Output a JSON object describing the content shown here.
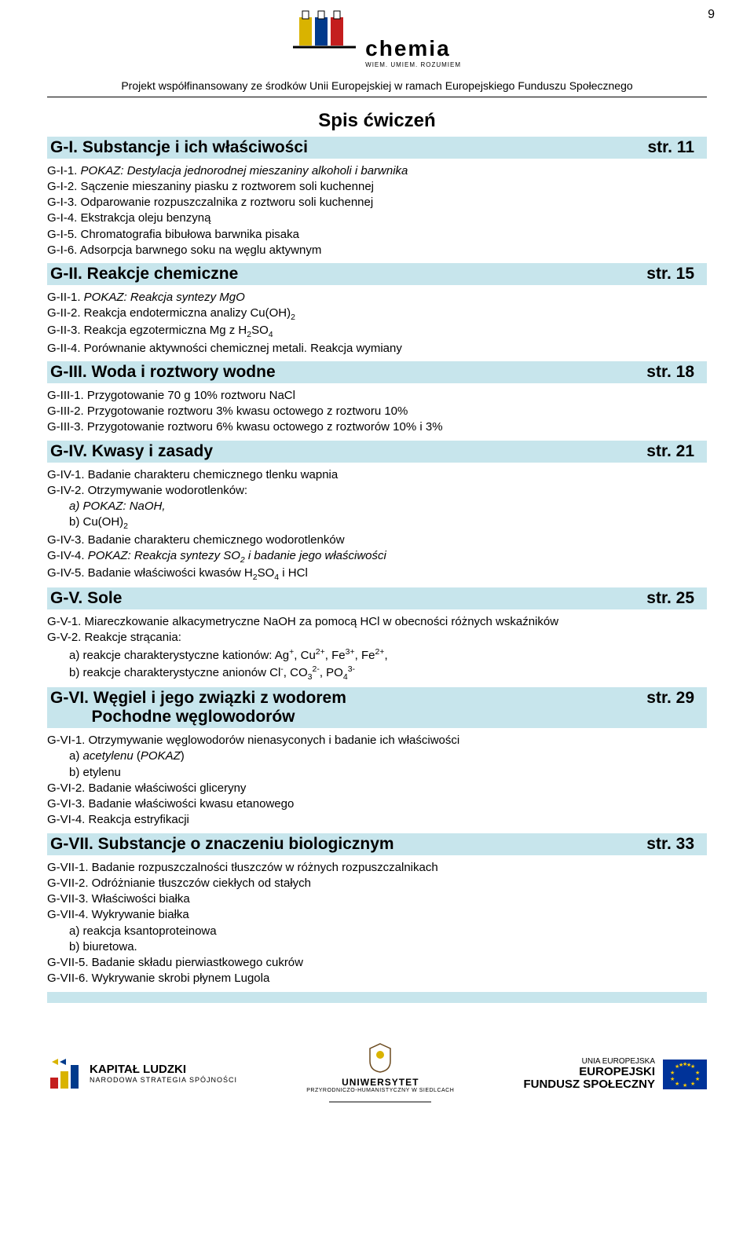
{
  "page_number": "9",
  "header": {
    "brand_main": "chemia",
    "brand_sub": "WIEM. UMIEM. ROZUMIEM",
    "logo_colors": [
      "#d9b300",
      "#003a8c",
      "#c41e1e"
    ],
    "subheader": "Projekt współfinansowany ze środków Unii Europejskiej w ramach Europejskiego Funduszu Społecznego"
  },
  "toc": {
    "title": "Spis ćwiczeń",
    "section_bg": "#c7e5ec",
    "sections": [
      {
        "title": "G-I. Substancje i ich właściwości",
        "page": "str. 11",
        "items": [
          {
            "html": "G-I-1. <span class='pokaz'>POKAZ: Destylacja jednorodnej mieszaniny alkoholi i barwnika</span>"
          },
          {
            "html": "G-I-2. Sączenie mieszaniny piasku z roztworem soli kuchennej"
          },
          {
            "html": "G-I-3. Odparowanie rozpuszczalnika z roztworu soli kuchennej"
          },
          {
            "html": "G-I-4. Ekstrakcja oleju benzyną"
          },
          {
            "html": "G-I-5. Chromatografia bibułowa barwnika pisaka"
          },
          {
            "html": "G-I-6. Adsorpcja barwnego soku na węglu aktywnym"
          }
        ]
      },
      {
        "title": "G-II. Reakcje chemiczne",
        "page": "str. 15",
        "items": [
          {
            "html": "G-II-1. <span class='pokaz'>POKAZ: Reakcja syntezy MgO</span>"
          },
          {
            "html": "G-II-2. Reakcja endotermiczna analizy Cu(OH)<sub>2</sub>"
          },
          {
            "html": "G-II-3. Reakcja egzotermiczna Mg z H<sub>2</sub>SO<sub>4</sub>"
          },
          {
            "html": "G-II-4. Porównanie aktywności chemicznej metali. Reakcja wymiany"
          }
        ]
      },
      {
        "title": "G-III. Woda i roztwory wodne",
        "page": "str. 18",
        "items": [
          {
            "html": "G-III-1. Przygotowanie 70 g 10% roztworu NaCl"
          },
          {
            "html": "G-III-2. Przygotowanie roztworu 3% kwasu octowego z roztworu 10%"
          },
          {
            "html": "G-III-3. Przygotowanie roztworu 6% kwasu octowego z roztworów 10% i 3%"
          }
        ]
      },
      {
        "title": "G-IV. Kwasy i zasady",
        "page": "str. 21",
        "items": [
          {
            "html": "G-IV-1. Badanie charakteru chemicznego tlenku wapnia"
          },
          {
            "html": "G-IV-2. Otrzymywanie wodorotlenków:"
          },
          {
            "html": "a) <span class='pokaz'>POKAZ: NaOH,</span>",
            "sub": true,
            "pokaz": true
          },
          {
            "html": "b) Cu(OH)<sub>2</sub>",
            "sub": true
          },
          {
            "html": "G-IV-3. Badanie charakteru chemicznego wodorotlenków"
          },
          {
            "html": "G-IV-4. <span class='pokaz'>POKAZ: Reakcja syntezy SO<sub>2</sub> i badanie jego właściwości</span>"
          },
          {
            "html": "G-IV-5. Badanie właściwości kwasów H<sub>2</sub>SO<sub>4</sub> i HCl"
          }
        ]
      },
      {
        "title": "G-V. Sole",
        "page": "str. 25",
        "items": [
          {
            "html": "G-V-1. Miareczkowanie alkacymetryczne NaOH za pomocą HCl w obecności różnych wskaźników"
          },
          {
            "html": "G-V-2. Reakcje strącania:"
          },
          {
            "html": "a) reakcje charakterystyczne kationów: Ag<sup>+</sup>, Cu<sup>2+</sup>, Fe<sup>3+</sup>, Fe<sup>2+</sup>,",
            "sub": true
          },
          {
            "html": "b) reakcje charakterystyczne anionów Cl<sup>-</sup>, CO<sub>3</sub><sup>2-</sup>, PO<sub>4</sub><sup>3-</sup>",
            "sub": true
          }
        ]
      },
      {
        "title_html": "G-VI. Węgiel i jego związki z wodorem<br>&nbsp;&nbsp;&nbsp;&nbsp;&nbsp;&nbsp;&nbsp;&nbsp;&nbsp;Pochodne węglowodorów",
        "page": "str. 29",
        "items": [
          {
            "html": "G-VI-1. Otrzymywanie węglowodorów nienasyconych i badanie ich właściwości"
          },
          {
            "html": "a) <span class='pokaz'>acetylenu</span> (<span class='pokaz'>POKAZ</span>)",
            "sub": true
          },
          {
            "html": "b) etylenu",
            "sub": true
          },
          {
            "html": "G-VI-2. Badanie właściwości gliceryny"
          },
          {
            "html": "G-VI-3. Badanie właściwości kwasu etanowego"
          },
          {
            "html": "G-VI-4. Reakcja estryfikacji"
          }
        ]
      },
      {
        "title": "G-VII. Substancje o znaczeniu biologicznym",
        "page": "str. 33",
        "items": [
          {
            "html": "G-VII-1. Badanie rozpuszczalności tłuszczów w różnych rozpuszczalnikach"
          },
          {
            "html": "G-VII-2. Odróżnianie tłuszczów ciekłych od stałych"
          },
          {
            "html": "G-VII-3. Właściwości białka"
          },
          {
            "html": "G-VII-4. Wykrywanie białka"
          },
          {
            "html": "a) reakcja ksantoproteinowa",
            "sub": true
          },
          {
            "html": "b) biuretowa.",
            "sub": true
          },
          {
            "html": "G-VII-5. Badanie składu pierwiastkowego cukrów"
          },
          {
            "html": "G-VII-6. Wykrywanie skrobi płynem Lugola"
          }
        ],
        "trailing_spacer": true
      }
    ]
  },
  "footer": {
    "kapital_main": "KAPITAŁ LUDZKI",
    "kapital_sub": "NARODOWA STRATEGIA SPÓJNOŚCI",
    "uni_name": "UNIWERSYTET",
    "uni_sub": "PRZYRODNICZO-HUMANISTYCZNY W SIEDLCACH",
    "eu_top": "UNIA EUROPEJSKA",
    "eu_line1": "EUROPEJSKI",
    "eu_line2": "FUNDUSZ SPOŁECZNY"
  }
}
